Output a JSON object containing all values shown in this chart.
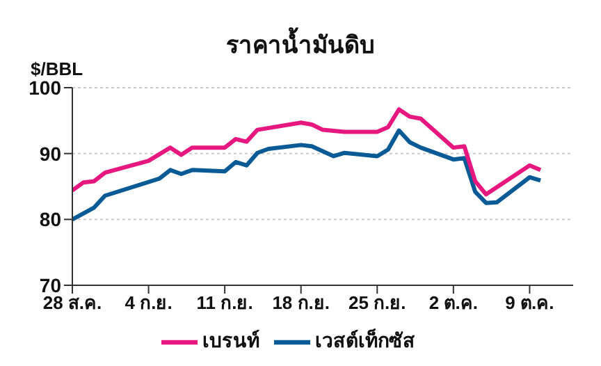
{
  "chart_data": {
    "type": "line",
    "title": "ราคาน้ำมันดิบ",
    "ylabel": "$/BBL",
    "xlim": [
      "--08-28",
      "--10-13"
    ],
    "xticks": [
      {
        "value": "--08-28",
        "label": "28 ส.ค."
      },
      {
        "value": "--09-04",
        "label": "4 ก.ย."
      },
      {
        "value": "--09-11",
        "label": "11 ก.ย."
      },
      {
        "value": "--09-18",
        "label": "18 ก.ย."
      },
      {
        "value": "--09-25",
        "label": "25 ก.ย."
      },
      {
        "value": "--10-02",
        "label": "2 ต.ค."
      },
      {
        "value": "--10-09",
        "label": "9 ต.ค."
      }
    ],
    "ylim": [
      70,
      100
    ],
    "yticks": [
      70,
      80,
      90,
      100
    ],
    "grid": "y",
    "legend": "bottom",
    "marker": "none",
    "line_style": "solid",
    "series": [
      {
        "name": "เวสต์เท็กซัส",
        "color": "#0a5a96",
        "x": [
          "--08-28",
          "--08-30",
          "--08-31",
          "--09-05",
          "--09-06",
          "--09-07",
          "--09-08",
          "--09-11",
          "--09-12",
          "--09-13",
          "--09-14",
          "--09-15",
          "--09-18",
          "--09-19",
          "--09-21",
          "--09-22",
          "--09-25",
          "--09-26",
          "--09-27",
          "--09-28",
          "--09-29",
          "--10-02",
          "--10-03",
          "--10-04",
          "--10-05",
          "--10-06",
          "--10-09",
          "--10-10"
        ],
        "values": [
          80.0,
          81.8,
          83.6,
          86.2,
          87.5,
          86.9,
          87.5,
          87.3,
          88.7,
          88.2,
          90.1,
          90.7,
          91.3,
          91.1,
          89.6,
          90.1,
          89.6,
          90.6,
          93.5,
          91.7,
          90.9,
          89.1,
          89.3,
          84.2,
          82.5,
          82.6,
          86.4,
          85.9
        ]
      },
      {
        "name": "เบรนท์",
        "color": "#e6177f",
        "x": [
          "--08-28",
          "--08-29",
          "--08-30",
          "--08-31",
          "--09-04",
          "--09-06",
          "--09-07",
          "--09-08",
          "--09-11",
          "--09-12",
          "--09-13",
          "--09-14",
          "--09-18",
          "--09-19",
          "--09-20",
          "--09-22",
          "--09-25",
          "--09-26",
          "--09-27",
          "--09-28",
          "--09-29",
          "--10-02",
          "--10-03",
          "--10-04",
          "--10-05",
          "--10-09",
          "--10-10"
        ],
        "values": [
          84.4,
          85.6,
          85.8,
          87.1,
          88.9,
          90.9,
          89.8,
          90.9,
          90.9,
          92.2,
          91.8,
          93.6,
          94.7,
          94.4,
          93.6,
          93.3,
          93.3,
          94.0,
          96.7,
          95.6,
          95.3,
          90.9,
          91.1,
          85.8,
          83.8,
          88.2,
          87.5
        ]
      }
    ]
  }
}
